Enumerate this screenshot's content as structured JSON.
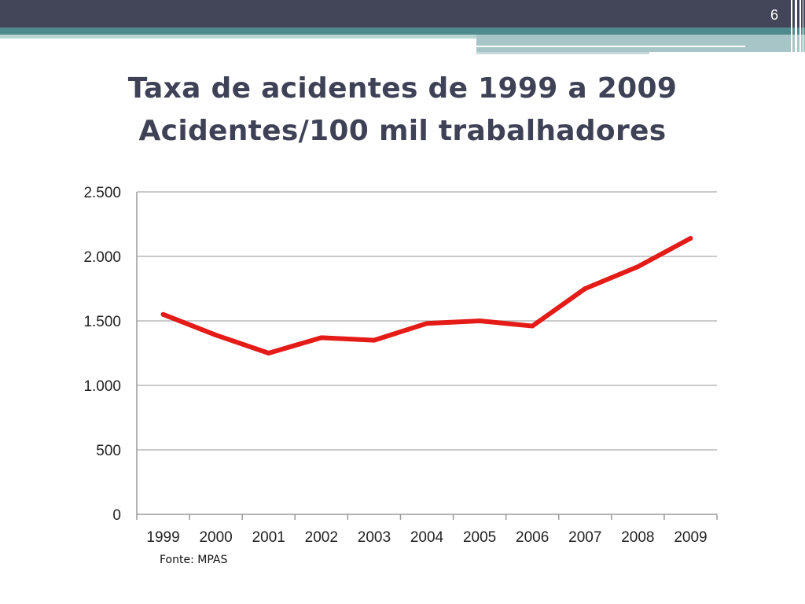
{
  "slide": {
    "page_number": "6",
    "title_line1": "Taxa de acidentes de 1999 a 2009",
    "title_line2": "Acidentes/100 mil trabalhadores",
    "source": "Fonte: MPAS"
  },
  "colors": {
    "header_dark": "#434558",
    "header_teal": "#4f8a8c",
    "title_text": "#3f4256",
    "series_line": "#e41b17",
    "gridline": "#b8b8b8",
    "axis": "#9a9a9a"
  },
  "chart_data": {
    "type": "line",
    "title": "",
    "xlabel": "",
    "ylabel": "",
    "categories": [
      "1999",
      "2000",
      "2001",
      "2002",
      "2003",
      "2004",
      "2005",
      "2006",
      "2007",
      "2008",
      "2009"
    ],
    "series": [
      {
        "values": [
          1550,
          1390,
          1250,
          1370,
          1350,
          1480,
          1500,
          1460,
          1750,
          1920,
          2140
        ]
      }
    ],
    "ylim": [
      0,
      2500
    ],
    "yticks": [
      0,
      500,
      1000,
      1500,
      2000,
      2500
    ],
    "ytick_labels": [
      "0",
      "500",
      "1.000",
      "1.500",
      "2.000",
      "2.500"
    ],
    "grid": true,
    "legend": "none"
  }
}
